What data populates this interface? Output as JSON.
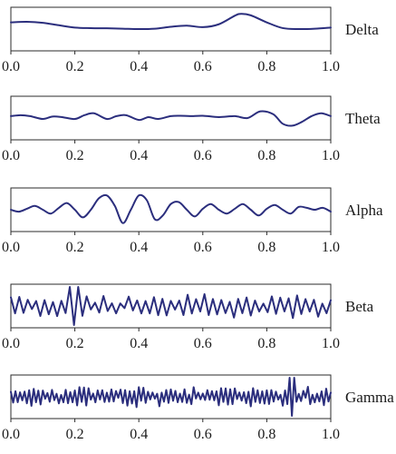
{
  "chart_data": [
    {
      "type": "line",
      "title": "Delta",
      "xlim": [
        0,
        1
      ],
      "xticks": [
        "0.0",
        "0.2",
        "0.4",
        "0.6",
        "0.8",
        "1.0"
      ],
      "series": [
        {
          "name": "Delta",
          "x": [
            0,
            0.05,
            0.1,
            0.15,
            0.2,
            0.25,
            0.3,
            0.35,
            0.4,
            0.45,
            0.5,
            0.55,
            0.6,
            0.65,
            0.7,
            0.72,
            0.75,
            0.8,
            0.85,
            0.9,
            0.95,
            1.0
          ],
          "y": [
            0.35,
            0.38,
            0.33,
            0.2,
            0.08,
            0.05,
            0.04,
            0.02,
            0.0,
            0.02,
            0.12,
            0.18,
            0.1,
            0.25,
            0.7,
            0.8,
            0.72,
            0.35,
            0.05,
            0.0,
            0.02,
            0.08
          ]
        }
      ]
    },
    {
      "type": "line",
      "title": "Theta",
      "xlim": [
        0,
        1
      ],
      "xticks": [
        "0.0",
        "0.2",
        "0.4",
        "0.6",
        "0.8",
        "1.0"
      ],
      "series": [
        {
          "name": "Theta",
          "x": [
            0,
            0.03,
            0.06,
            0.1,
            0.13,
            0.16,
            0.2,
            0.23,
            0.26,
            0.3,
            0.33,
            0.36,
            0.4,
            0.43,
            0.46,
            0.5,
            0.53,
            0.56,
            0.6,
            0.65,
            0.7,
            0.74,
            0.78,
            0.82,
            0.85,
            0.88,
            0.91,
            0.94,
            0.97,
            1.0
          ],
          "y": [
            0.1,
            0.15,
            0.1,
            -0.05,
            0.08,
            0.05,
            -0.05,
            0.15,
            0.25,
            -0.05,
            0.1,
            0.15,
            -0.1,
            0.05,
            -0.05,
            0.1,
            0.12,
            0.1,
            0.12,
            0.05,
            0.1,
            0.0,
            0.35,
            0.2,
            -0.3,
            -0.4,
            -0.2,
            0.1,
            0.25,
            0.1
          ]
        }
      ]
    },
    {
      "type": "line",
      "title": "Alpha",
      "xlim": [
        0,
        1
      ],
      "xticks": [
        "0.0",
        "0.2",
        "0.4",
        "0.6",
        "0.8",
        "1.0"
      ],
      "series": [
        {
          "name": "Alpha",
          "x": [
            0,
            0.025,
            0.05,
            0.075,
            0.1,
            0.125,
            0.15,
            0.175,
            0.2,
            0.225,
            0.25,
            0.275,
            0.3,
            0.325,
            0.35,
            0.375,
            0.4,
            0.425,
            0.45,
            0.475,
            0.5,
            0.525,
            0.55,
            0.575,
            0.6,
            0.625,
            0.65,
            0.675,
            0.7,
            0.725,
            0.75,
            0.775,
            0.8,
            0.825,
            0.85,
            0.875,
            0.9,
            0.925,
            0.95,
            0.975,
            1.0
          ],
          "y": [
            0.0,
            -0.1,
            0.05,
            0.2,
            0.0,
            -0.2,
            0.1,
            0.35,
            0.0,
            -0.4,
            0.0,
            0.6,
            0.75,
            0.2,
            -0.7,
            0.0,
            0.75,
            0.5,
            -0.5,
            -0.3,
            0.3,
            0.4,
            0.0,
            -0.35,
            0.05,
            0.3,
            0.0,
            -0.2,
            0.05,
            0.3,
            0.0,
            -0.3,
            0.05,
            0.25,
            0.0,
            -0.2,
            0.15,
            0.1,
            0.0,
            0.1,
            -0.1
          ]
        }
      ]
    },
    {
      "type": "line",
      "title": "Beta",
      "xlim": [
        0,
        1
      ],
      "xticks": [
        "0.0",
        "0.2",
        "0.4",
        "0.6",
        "0.8",
        "1.0"
      ],
      "series": [
        {
          "name": "Beta",
          "signal": "high-frequency",
          "cycles": 38,
          "peak_x": 0.2,
          "peak_y": 1.0,
          "amplitude": 0.55
        }
      ]
    },
    {
      "type": "line",
      "title": "Gamma",
      "xlim": [
        0,
        1
      ],
      "xticks": [
        "0.0",
        "0.2",
        "0.4",
        "0.6",
        "0.8",
        "1.0"
      ],
      "series": [
        {
          "name": "Gamma",
          "signal": "high-frequency",
          "cycles": 70,
          "peak_x": 0.88,
          "peak_y": 1.0,
          "amplitude": 0.45
        }
      ]
    }
  ],
  "colors": {
    "trace": "#2b2e7d"
  }
}
